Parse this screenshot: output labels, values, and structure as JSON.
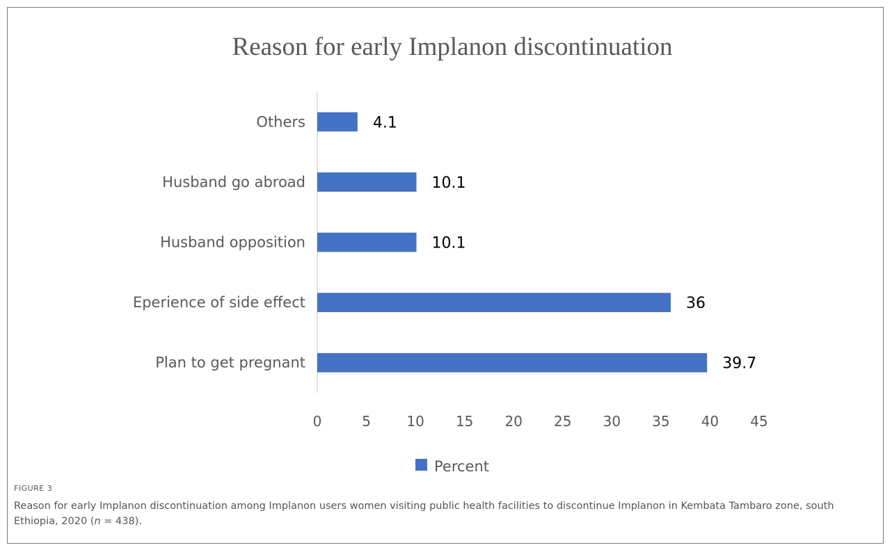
{
  "figure": {
    "label": "FIGURE 3",
    "caption_main": "Reason for early Implanon discontinuation among Implanon users women visiting public health facilities to discontinue Implanon in Kembata Tambaro zone, south Ethiopia, 2020 (",
    "caption_n": "n",
    "caption_end": " = 438)."
  },
  "chart_data": {
    "type": "bar",
    "orientation": "horizontal",
    "title": "Reason for early Implanon  discontinuation",
    "categories": [
      "Others",
      "Husband go abroad",
      "Husband opposition",
      "Eperience of side effect",
      "Plan to get pregnant"
    ],
    "series": [
      {
        "name": "Percent",
        "values": [
          4.1,
          10.1,
          10.1,
          36,
          39.7
        ]
      }
    ],
    "data_labels": [
      "4.1",
      "10.1",
      "10.1",
      "36",
      "39.7"
    ],
    "xlim": [
      0,
      45
    ],
    "xticks": [
      0,
      5,
      10,
      15,
      20,
      25,
      30,
      35,
      40,
      45
    ],
    "grid": false,
    "legend_position": "bottom",
    "bar_color": "#4472C4"
  }
}
